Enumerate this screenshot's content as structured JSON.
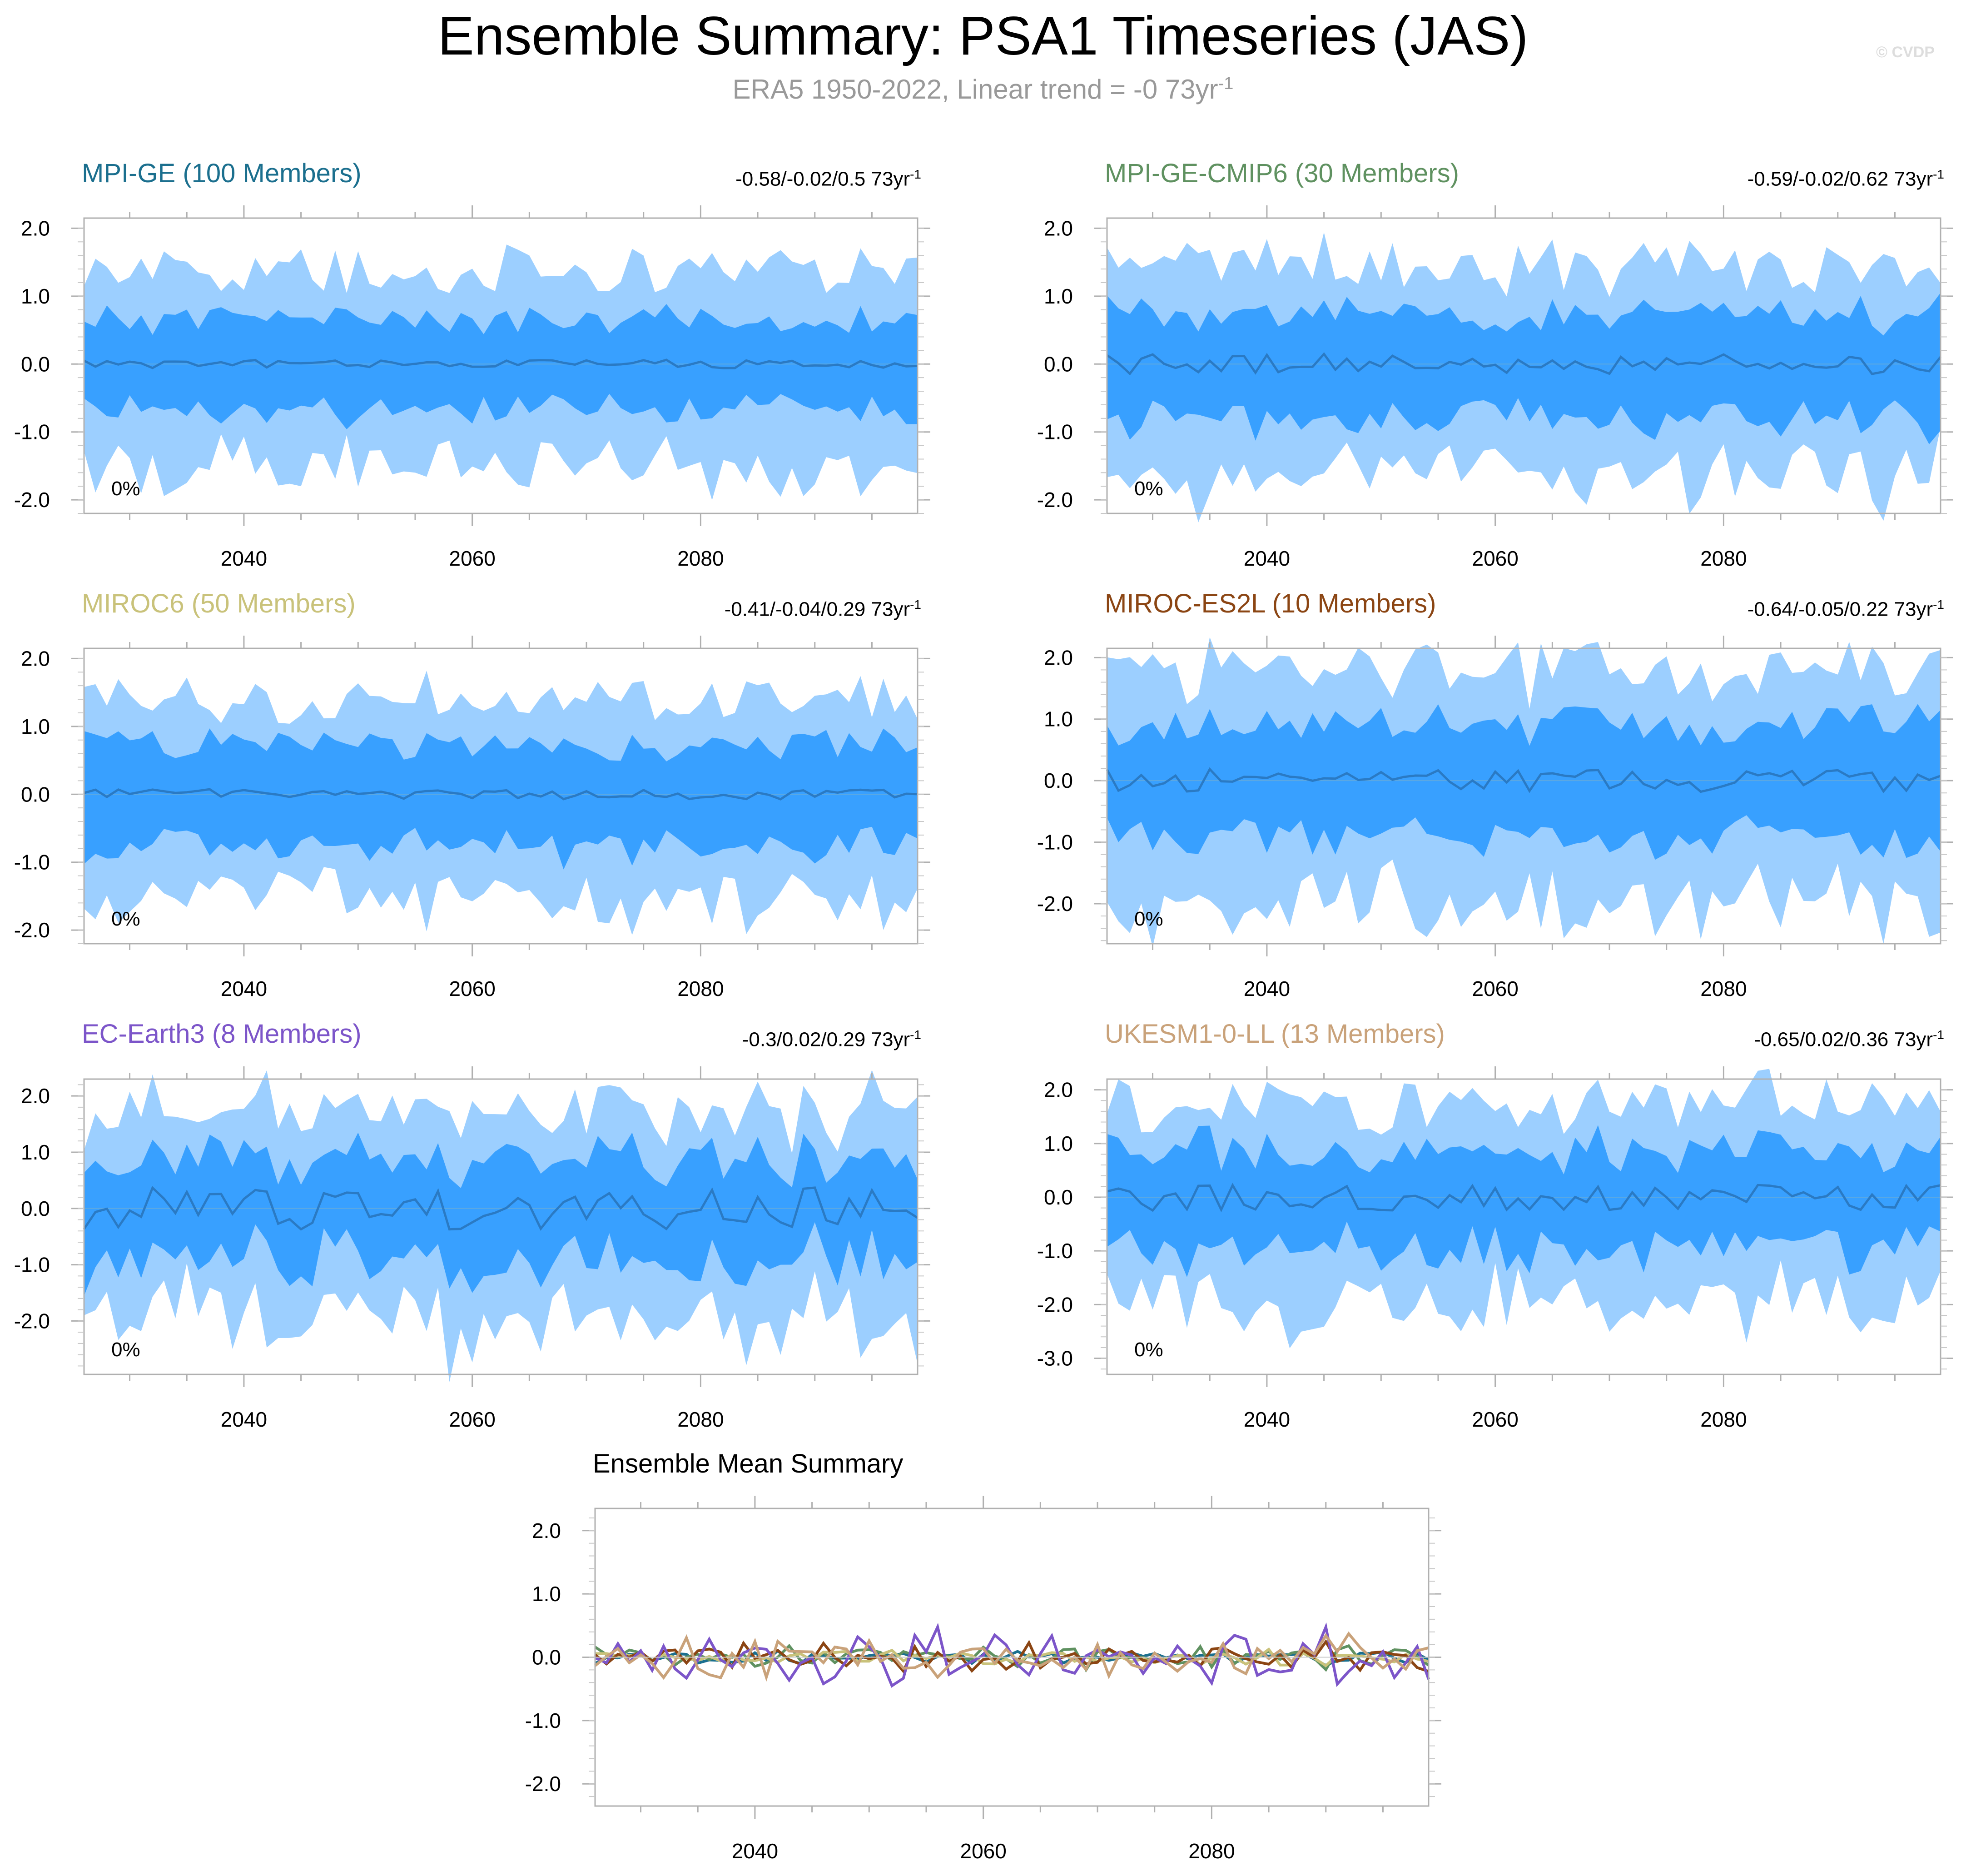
{
  "header": {
    "title": "Ensemble Summary: PSA1 Timeseries (JAS)",
    "subtitle_main": "ERA5 1950-2022, Linear trend = -0 73yr",
    "subtitle_sup": "-1",
    "credit": "© CVDP"
  },
  "colors": {
    "outer_band": "#9ccfff",
    "inner_band": "#38a0ff",
    "median_line": "#2a7ac4",
    "frame": "#b0b0b0"
  },
  "chart_data": [
    {
      "type": "area",
      "name": "MPI-GE (100 Members)",
      "title_color": "#1b6f8e",
      "stats": "-0.58/-0.02/0.5 73yr",
      "stats_sup": "-1",
      "percent_label": "0%",
      "x_range": [
        2026,
        2099
      ],
      "ylim": [
        -2.2,
        2.15
      ],
      "yticks": [
        2.0,
        1.0,
        0.0,
        -1.0,
        -2.0
      ],
      "ytick_labels": [
        "2.0",
        "1.0",
        "0.0",
        "-1.0",
        "-2.0"
      ],
      "xticks": [
        2040,
        2060,
        2080
      ],
      "series": {
        "amp": 1.0,
        "inner": 0.62,
        "outer": 1.28,
        "mean": 0.05,
        "seed": 11
      }
    },
    {
      "type": "area",
      "name": "MPI-GE-CMIP6 (30 Members)",
      "title_color": "#5f9160",
      "stats": "-0.59/-0.02/0.62 73yr",
      "stats_sup": "-1",
      "percent_label": "0%",
      "x_range": [
        2026,
        2099
      ],
      "ylim": [
        -2.2,
        2.15
      ],
      "yticks": [
        2.0,
        1.0,
        0.0,
        -1.0,
        -2.0
      ],
      "ytick_labels": [
        "2.0",
        "1.0",
        "0.0",
        "-1.0",
        "-2.0"
      ],
      "xticks": [
        2040,
        2060,
        2080
      ],
      "series": {
        "amp": 1.0,
        "inner": 0.7,
        "outer": 1.35,
        "mean": 0.12,
        "seed": 23
      }
    },
    {
      "type": "area",
      "name": "MIROC6 (50 Members)",
      "title_color": "#c9c27a",
      "stats": "-0.41/-0.04/0.29 73yr",
      "stats_sup": "-1",
      "percent_label": "0%",
      "x_range": [
        2026,
        2099
      ],
      "ylim": [
        -2.2,
        2.15
      ],
      "yticks": [
        2.0,
        1.0,
        0.0,
        -1.0,
        -2.0
      ],
      "ytick_labels": [
        "2.0",
        "1.0",
        "0.0",
        "-1.0",
        "-2.0"
      ],
      "xticks": [
        2040,
        2060,
        2080
      ],
      "series": {
        "amp": 1.0,
        "inner": 0.68,
        "outer": 1.32,
        "mean": 0.06,
        "seed": 37
      }
    },
    {
      "type": "area",
      "name": "MIROC-ES2L (10 Members)",
      "title_color": "#8b4513",
      "stats": "-0.64/-0.05/0.22 73yr",
      "stats_sup": "-1",
      "percent_label": "0%",
      "x_range": [
        2026,
        2099
      ],
      "ylim": [
        -2.65,
        2.15
      ],
      "yticks": [
        2.0,
        1.0,
        0.0,
        -1.0,
        -2.0
      ],
      "ytick_labels": [
        "2.0",
        "1.0",
        "0.0",
        "-1.0",
        "-2.0"
      ],
      "xticks": [
        2040,
        2060,
        2080
      ],
      "series": {
        "amp": 1.0,
        "inner": 0.85,
        "outer": 1.65,
        "mean": 0.15,
        "seed": 41
      }
    },
    {
      "type": "area",
      "name": "EC-Earth3 (8 Members)",
      "title_color": "#7c55c9",
      "stats": "-0.3/0.02/0.29 73yr",
      "stats_sup": "-1",
      "percent_label": "0%",
      "x_range": [
        2026,
        2099
      ],
      "ylim": [
        -2.95,
        2.3
      ],
      "yticks": [
        2.0,
        1.0,
        0.0,
        -1.0,
        -2.0
      ],
      "ytick_labels": [
        "2.0",
        "1.0",
        "0.0",
        "-1.0",
        "-2.0"
      ],
      "xticks": [
        2040,
        2060,
        2080
      ],
      "series": {
        "amp": 1.0,
        "inner": 0.85,
        "outer": 1.6,
        "mean": 0.3,
        "seed": 53
      }
    },
    {
      "type": "area",
      "name": "UKESM1-0-LL (13 Members)",
      "title_color": "#c9a27a",
      "stats": "-0.65/0.02/0.36 73yr",
      "stats_sup": "-1",
      "percent_label": "0%",
      "x_range": [
        2026,
        2099
      ],
      "ylim": [
        -3.3,
        2.2
      ],
      "yticks": [
        2.0,
        1.0,
        0.0,
        -1.0,
        -2.0,
        -3.0
      ],
      "ytick_labels": [
        "2.0",
        "1.0",
        "0.0",
        "-1.0",
        "-2.0",
        "-3.0"
      ],
      "xticks": [
        2040,
        2060,
        2080
      ],
      "series": {
        "amp": 1.0,
        "inner": 0.85,
        "outer": 1.65,
        "mean": 0.2,
        "seed": 67
      }
    },
    {
      "type": "line",
      "name": "Ensemble Mean Summary",
      "x_range": [
        2026,
        2099
      ],
      "ylim": [
        -2.35,
        2.35
      ],
      "yticks": [
        2.0,
        1.0,
        0.0,
        -1.0,
        -2.0
      ],
      "ytick_labels": [
        "2.0",
        "1.0",
        "0.0",
        "-1.0",
        "-2.0"
      ],
      "xticks": [
        2040,
        2060,
        2080
      ],
      "lines": [
        {
          "model": "MPI-GE",
          "color": "#1b6f8e",
          "amp": 0.08,
          "seed": 101
        },
        {
          "model": "MPI-GE-CMIP6",
          "color": "#5f9160",
          "amp": 0.12,
          "seed": 102
        },
        {
          "model": "MIROC6",
          "color": "#c9c27a",
          "amp": 0.08,
          "seed": 103
        },
        {
          "model": "MIROC-ES2L",
          "color": "#8b4513",
          "amp": 0.15,
          "seed": 104
        },
        {
          "model": "EC-Earth3",
          "color": "#7c55c9",
          "amp": 0.3,
          "seed": 105
        },
        {
          "model": "UKESM1-0-LL",
          "color": "#c9a27a",
          "amp": 0.22,
          "seed": 106
        }
      ]
    }
  ]
}
